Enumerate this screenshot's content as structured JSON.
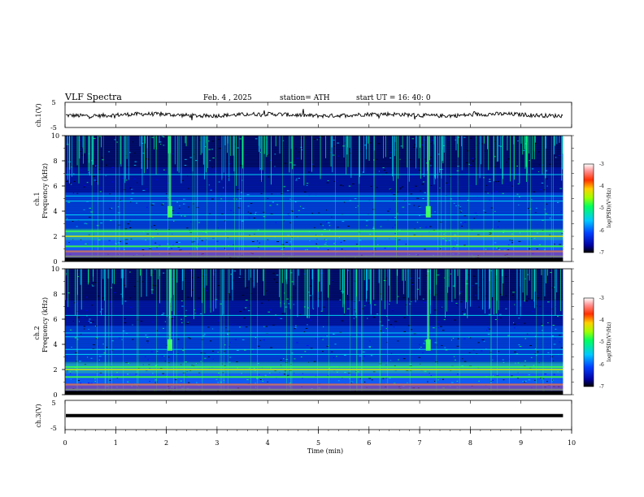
{
  "header": {
    "title": "VLF  Spectra",
    "date": "Feb. 4  , 2025",
    "station": "station= ATH",
    "start": "start  UT  =    16: 40: 0"
  },
  "chart_data": [
    {
      "type": "line",
      "panel": "ch1-waveform",
      "ylabel": "ch.1(V)",
      "ylim": [
        -5,
        5
      ],
      "yticks": [
        "5",
        "-5"
      ],
      "baseline": 0,
      "color": "#000000"
    },
    {
      "type": "heatmap",
      "panel": "ch1-spectrogram",
      "ylabel": "ch.1\nFrequency  (kHz)",
      "ylabel_top": "ch.1",
      "ylabel_bottom": "Frequency  (kHz)",
      "ylim": [
        0,
        10
      ],
      "yticks": [
        "0",
        "2",
        "4",
        "6",
        "8",
        "10"
      ],
      "colorbar": {
        "label": "log(PSD)(V²/Hz)",
        "ticks": [
          "-3",
          "-4",
          "-5",
          "-6",
          "-7"
        ],
        "range": [
          -7,
          -3
        ]
      },
      "bands_khz": [
        0.4,
        0.8,
        1.2,
        2.0,
        2.4,
        3.3,
        3.7,
        4.8,
        5.2,
        6.9
      ],
      "bursts_min": [
        2.07,
        7.17
      ]
    },
    {
      "type": "heatmap",
      "panel": "ch2-spectrogram",
      "ylabel_top": "ch.2",
      "ylabel_bottom": "Frequency  (kHz)",
      "ylim": [
        0,
        10
      ],
      "yticks": [
        "0",
        "2",
        "4",
        "6",
        "8",
        "10"
      ],
      "colorbar": {
        "label": "log(PSD)(V²/Hz)",
        "ticks": [
          "-3",
          "-4",
          "-5",
          "-6",
          "-7"
        ],
        "range": [
          -7,
          -3
        ]
      },
      "bands_khz": [
        0.4,
        0.8,
        1.4,
        2.0,
        2.2,
        3.2,
        3.6,
        4.6,
        4.9,
        6.3
      ],
      "bursts_min": [
        2.07,
        7.17
      ]
    },
    {
      "type": "line",
      "panel": "ch3-waveform",
      "ylabel": "ch.3(V)",
      "ylim": [
        -5,
        5
      ],
      "yticks": [
        "5",
        "-5"
      ],
      "baseline": -0.2,
      "color": "#000000"
    }
  ],
  "xaxis": {
    "label": "Time  (min)",
    "xlim": [
      0,
      10
    ],
    "ticks": [
      "0",
      "1",
      "2",
      "3",
      "4",
      "5",
      "6",
      "7",
      "8",
      "9",
      "10"
    ],
    "data_end_min": 9.83
  },
  "colors": {
    "background": "#000000",
    "low": "#0000b4",
    "mid": "#00c8ff",
    "high": "#00ff50",
    "peak": "#ff3000"
  }
}
